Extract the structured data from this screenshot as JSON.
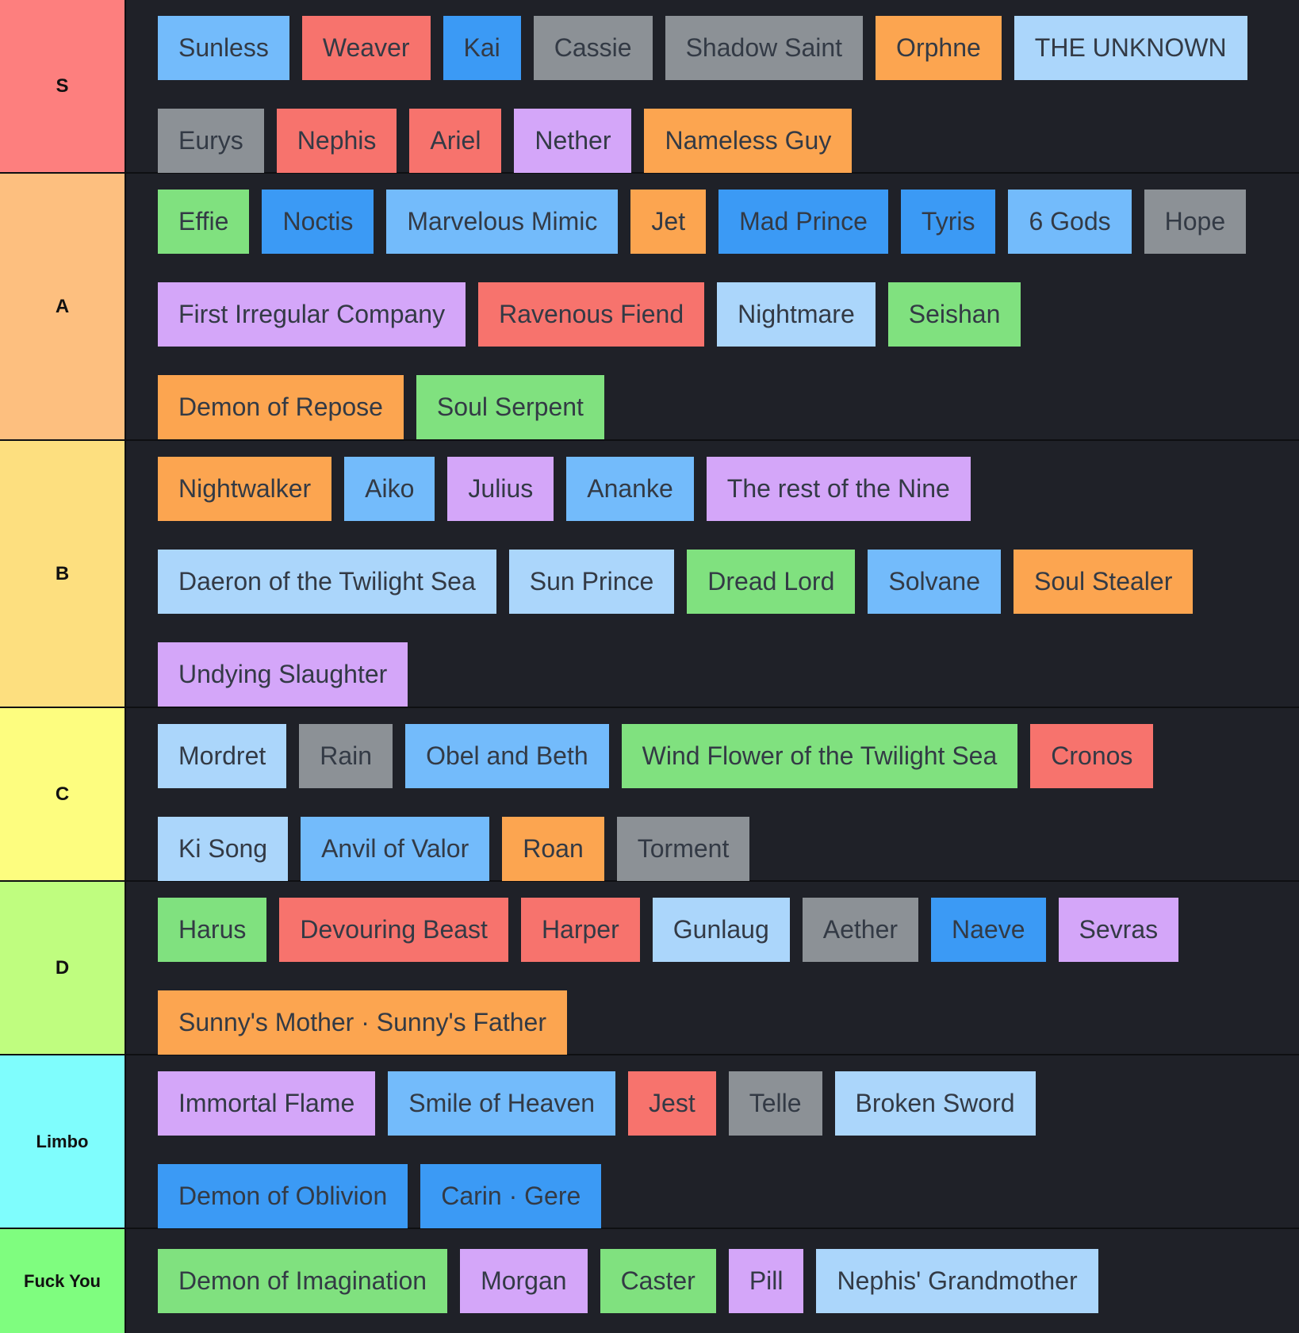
{
  "colors": {
    "background": "#1f2128",
    "chip_text": "#333a45",
    "tier_text": "#111111",
    "palette": {
      "light_blue": "#abd6fb",
      "blue_mid": "#73bbfb",
      "blue_dark": "#3b9af5",
      "red": "#f7736d",
      "gray": "#8c9196",
      "orange": "#fca550",
      "purple": "#d4a6f9",
      "green": "#80e17f"
    }
  },
  "tiers": [
    {
      "label": "S",
      "color": "#fd7f7e",
      "items": [
        {
          "label": "Sunless",
          "color": "#73bbfb"
        },
        {
          "label": "Weaver",
          "color": "#f7736d"
        },
        {
          "label": "Kai",
          "color": "#3b9af5"
        },
        {
          "label": "Cassie",
          "color": "#8c9196"
        },
        {
          "label": "Shadow Saint",
          "color": "#8c9196"
        },
        {
          "label": "Orphne",
          "color": "#fca550"
        },
        {
          "label": "THE UNKNOWN",
          "color": "#abd6fb"
        },
        {
          "label": "Eurys",
          "color": "#8c9196"
        },
        {
          "label": "Nephis",
          "color": "#f7736d"
        },
        {
          "label": "Ariel",
          "color": "#f7736d"
        },
        {
          "label": "Nether",
          "color": "#d4a6f9"
        },
        {
          "label": "Nameless Guy",
          "color": "#fca550"
        }
      ]
    },
    {
      "label": "A",
      "color": "#fdbf7f",
      "items": [
        {
          "label": "Effie",
          "color": "#80e17f"
        },
        {
          "label": "Noctis",
          "color": "#3b9af5"
        },
        {
          "label": "Marvelous Mimic",
          "color": "#73bbfb"
        },
        {
          "label": "Jet",
          "color": "#fca550"
        },
        {
          "label": "Mad Prince",
          "color": "#3b9af5"
        },
        {
          "label": "Tyris",
          "color": "#3b9af5"
        },
        {
          "label": "6 Gods",
          "color": "#73bbfb"
        },
        {
          "label": "Hope",
          "color": "#8c9196"
        },
        {
          "label": "First Irregular Company",
          "color": "#d4a6f9"
        },
        {
          "label": "Ravenous Fiend",
          "color": "#f7736d"
        },
        {
          "label": "Nightmare",
          "color": "#abd6fb"
        },
        {
          "label": "Seishan",
          "color": "#80e17f"
        },
        {
          "label": "Demon of Repose",
          "color": "#fca550"
        },
        {
          "label": "Soul Serpent",
          "color": "#80e17f"
        }
      ]
    },
    {
      "label": "B",
      "color": "#fddf7f",
      "items": [
        {
          "label": "Nightwalker",
          "color": "#fca550"
        },
        {
          "label": "Aiko",
          "color": "#73bbfb"
        },
        {
          "label": "Julius",
          "color": "#d4a6f9"
        },
        {
          "label": "Ananke",
          "color": "#73bbfb"
        },
        {
          "label": "The rest of the Nine",
          "color": "#d4a6f9"
        },
        {
          "label": "Daeron of the Twilight Sea",
          "color": "#abd6fb"
        },
        {
          "label": "Sun Prince",
          "color": "#abd6fb"
        },
        {
          "label": "Dread Lord",
          "color": "#80e17f"
        },
        {
          "label": "Solvane",
          "color": "#73bbfb"
        },
        {
          "label": "Soul Stealer",
          "color": "#fca550"
        },
        {
          "label": "Undying Slaughter",
          "color": "#d4a6f9"
        }
      ]
    },
    {
      "label": "C",
      "color": "#fdfd7f",
      "items": [
        {
          "label": "Mordret",
          "color": "#abd6fb"
        },
        {
          "label": "Rain",
          "color": "#8c9196"
        },
        {
          "label": "Obel and Beth",
          "color": "#73bbfb"
        },
        {
          "label": "Wind Flower of the Twilight Sea",
          "color": "#80e17f"
        },
        {
          "label": "Cronos",
          "color": "#f7736d"
        },
        {
          "label": "Ki Song",
          "color": "#abd6fb"
        },
        {
          "label": "Anvil of Valor",
          "color": "#73bbfb"
        },
        {
          "label": "Roan",
          "color": "#fca550"
        },
        {
          "label": "Torment",
          "color": "#8c9196"
        }
      ]
    },
    {
      "label": "D",
      "color": "#bffd7f",
      "items": [
        {
          "label": "Harus",
          "color": "#80e17f"
        },
        {
          "label": "Devouring Beast",
          "color": "#f7736d"
        },
        {
          "label": "Harper",
          "color": "#f7736d"
        },
        {
          "label": "Gunlaug",
          "color": "#abd6fb"
        },
        {
          "label": "Aether",
          "color": "#8c9196"
        },
        {
          "label": "Naeve",
          "color": "#3b9af5"
        },
        {
          "label": "Sevras",
          "color": "#d4a6f9"
        },
        {
          "label": "Sunny's Mother · Sunny's Father",
          "color": "#fca550"
        }
      ]
    },
    {
      "label": "Limbo",
      "color": "#7ffdfd",
      "items": [
        {
          "label": "Immortal Flame",
          "color": "#d4a6f9"
        },
        {
          "label": "Smile of Heaven",
          "color": "#73bbfb"
        },
        {
          "label": "Jest",
          "color": "#f7736d"
        },
        {
          "label": "Telle",
          "color": "#8c9196"
        },
        {
          "label": "Broken Sword",
          "color": "#abd6fb"
        },
        {
          "label": "Demon of Oblivion",
          "color": "#3b9af5"
        },
        {
          "label": "Carin · Gere",
          "color": "#3b9af5"
        }
      ]
    },
    {
      "label": "Fuck You",
      "color": "#7ffd7f",
      "items": [
        {
          "label": "Demon of Imagination",
          "color": "#80e17f"
        },
        {
          "label": "Morgan",
          "color": "#d4a6f9"
        },
        {
          "label": "Caster",
          "color": "#80e17f"
        },
        {
          "label": "Pill",
          "color": "#d4a6f9"
        },
        {
          "label": "Nephis' Grandmother",
          "color": "#abd6fb"
        }
      ]
    }
  ]
}
